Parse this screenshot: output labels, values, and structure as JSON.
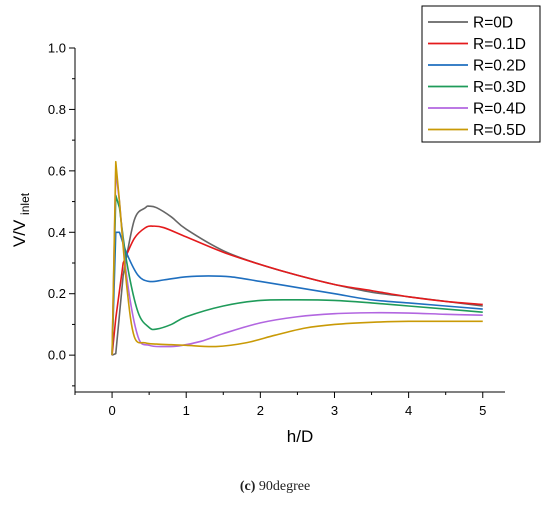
{
  "caption": {
    "label": "(c)",
    "text": "90degree"
  },
  "chart_data": {
    "type": "line",
    "title": "",
    "xlabel": "h/D",
    "ylabel_main": "V/V",
    "ylabel_sub": "inlet",
    "xlim": [
      -0.5,
      5.3
    ],
    "ylim": [
      -0.12,
      1.0
    ],
    "xticks": [
      0,
      1,
      2,
      3,
      4,
      5
    ],
    "yticks": [
      0.0,
      0.2,
      0.4,
      0.6,
      0.8,
      1.0
    ],
    "xtick_labels": [
      "0",
      "1",
      "2",
      "3",
      "4",
      "5"
    ],
    "ytick_labels": [
      "0.0",
      "0.2",
      "0.4",
      "0.6",
      "0.8",
      "1.0"
    ],
    "grid": false,
    "legend_position": "top-right",
    "series": [
      {
        "name": "R=0D",
        "color": "#666666",
        "x": [
          0,
          0.05,
          0.15,
          0.3,
          0.45,
          0.5,
          0.6,
          0.8,
          1.0,
          1.5,
          2.0,
          2.5,
          3.0,
          3.5,
          4.0,
          4.5,
          5.0
        ],
        "y": [
          0.0,
          0.005,
          0.26,
          0.44,
          0.48,
          0.485,
          0.48,
          0.45,
          0.41,
          0.34,
          0.295,
          0.26,
          0.23,
          0.205,
          0.19,
          0.175,
          0.16
        ]
      },
      {
        "name": "R=0.1D",
        "color": "#e41a1c",
        "x": [
          0,
          0.05,
          0.15,
          0.3,
          0.45,
          0.55,
          0.7,
          1.0,
          1.5,
          2.0,
          2.5,
          3.0,
          3.5,
          4.0,
          4.5,
          5.0
        ],
        "y": [
          0.0,
          0.12,
          0.3,
          0.38,
          0.415,
          0.42,
          0.415,
          0.385,
          0.335,
          0.295,
          0.26,
          0.23,
          0.21,
          0.19,
          0.175,
          0.165
        ]
      },
      {
        "name": "R=0.2D",
        "color": "#1f6fbf",
        "x": [
          0,
          0.05,
          0.1,
          0.2,
          0.35,
          0.5,
          0.7,
          1.0,
          1.3,
          1.6,
          2.0,
          2.5,
          3.0,
          3.5,
          4.0,
          4.5,
          5.0
        ],
        "y": [
          0.0,
          0.4,
          0.4,
          0.33,
          0.26,
          0.24,
          0.245,
          0.255,
          0.258,
          0.255,
          0.24,
          0.22,
          0.2,
          0.18,
          0.17,
          0.16,
          0.15
        ]
      },
      {
        "name": "R=0.3D",
        "color": "#1f9b5a",
        "x": [
          0,
          0.05,
          0.1,
          0.2,
          0.35,
          0.5,
          0.6,
          0.8,
          1.0,
          1.5,
          2.0,
          2.5,
          3.0,
          3.5,
          4.0,
          4.5,
          5.0
        ],
        "y": [
          0.0,
          0.52,
          0.48,
          0.3,
          0.14,
          0.09,
          0.085,
          0.1,
          0.125,
          0.16,
          0.178,
          0.18,
          0.178,
          0.17,
          0.16,
          0.15,
          0.14
        ]
      },
      {
        "name": "R=0.4D",
        "color": "#b266e0",
        "x": [
          0,
          0.05,
          0.1,
          0.2,
          0.35,
          0.5,
          0.7,
          0.9,
          1.2,
          1.5,
          2.0,
          2.5,
          3.0,
          3.5,
          4.0,
          4.5,
          5.0
        ],
        "y": [
          0.0,
          0.6,
          0.5,
          0.25,
          0.06,
          0.032,
          0.028,
          0.03,
          0.045,
          0.07,
          0.105,
          0.125,
          0.135,
          0.138,
          0.137,
          0.133,
          0.13
        ]
      },
      {
        "name": "R=0.5D",
        "color": "#c99a06",
        "x": [
          0,
          0.05,
          0.1,
          0.2,
          0.3,
          0.45,
          0.6,
          0.8,
          1.0,
          1.4,
          1.8,
          2.2,
          2.6,
          3.0,
          3.5,
          4.0,
          4.5,
          5.0
        ],
        "y": [
          0.0,
          0.63,
          0.5,
          0.22,
          0.06,
          0.04,
          0.036,
          0.034,
          0.032,
          0.028,
          0.04,
          0.065,
          0.088,
          0.1,
          0.107,
          0.11,
          0.11,
          0.11
        ]
      }
    ]
  }
}
